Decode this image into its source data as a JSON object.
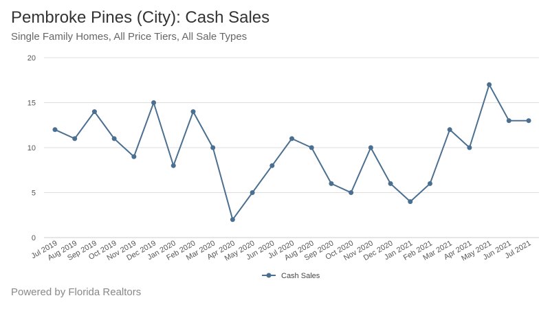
{
  "header": {
    "title": "Pembroke Pines (City): Cash Sales",
    "subtitle": "Single Family Homes, All Price Tiers, All Sale Types"
  },
  "footer": {
    "text": "Powered by Florida Realtors"
  },
  "colors": {
    "series": "#4a6f90",
    "grid": "#dddddd",
    "axis": "#cccccc"
  },
  "chart_data": {
    "type": "line",
    "categories": [
      "Jul 2019",
      "Aug 2019",
      "Sep 2019",
      "Oct 2019",
      "Nov 2019",
      "Dec 2019",
      "Jan 2020",
      "Feb 2020",
      "Mar 2020",
      "Apr 2020",
      "May 2020",
      "Jun 2020",
      "Jul 2020",
      "Aug 2020",
      "Sep 2020",
      "Oct 2020",
      "Nov 2020",
      "Dec 2020",
      "Jan 2021",
      "Feb 2021",
      "Mar 2021",
      "Apr 2021",
      "May 2021",
      "Jun 2021",
      "Jul 2021"
    ],
    "series": [
      {
        "name": "Cash Sales",
        "values": [
          12,
          11,
          14,
          11,
          9,
          15,
          8,
          14,
          10,
          2,
          5,
          8,
          11,
          10,
          6,
          5,
          10,
          6,
          4,
          6,
          12,
          10,
          17,
          13,
          13
        ]
      }
    ],
    "title": "Pembroke Pines (City): Cash Sales",
    "subtitle": "Single Family Homes, All Price Tiers, All Sale Types",
    "ylim": [
      0,
      20
    ],
    "yticks": [
      0,
      5,
      10,
      15,
      20
    ],
    "grid": true,
    "legend": "bottom-center"
  }
}
